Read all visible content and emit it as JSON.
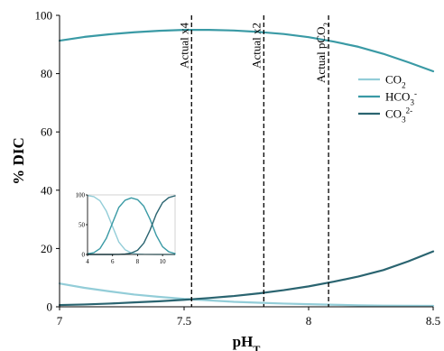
{
  "colors": {
    "co2": "#93CDD8",
    "hco3": "#3A9AA5",
    "co3": "#2A6470",
    "axis": "#000000"
  },
  "chart_data": [
    {
      "type": "line",
      "title": "",
      "xlabel": "pH",
      "xlabel_sub": "T",
      "ylabel": "% DIC",
      "xlim": [
        7,
        8.5
      ],
      "ylim": [
        0,
        100
      ],
      "xticks": [
        7,
        7.5,
        8,
        8.5
      ],
      "xtick_labels": [
        "7",
        "7.5",
        "8",
        "8.5"
      ],
      "yticks": [
        0,
        20,
        40,
        60,
        80,
        100
      ],
      "ytick_labels": [
        "0",
        "20",
        "40",
        "60",
        "80",
        "100"
      ],
      "legend": {
        "position": "right",
        "entries": [
          {
            "key": "co2",
            "base": "CO",
            "sub": "2",
            "sup": ""
          },
          {
            "key": "hco3",
            "base": "HCO",
            "sub": "3",
            "sup": "-"
          },
          {
            "key": "co3",
            "base": "CO",
            "sub": "3",
            "sup": "2-"
          }
        ]
      },
      "series": [
        {
          "key": "co2",
          "x": [
            7,
            7.1,
            7.2,
            7.3,
            7.4,
            7.5,
            7.6,
            7.7,
            7.8,
            7.9,
            8,
            8.1,
            8.2,
            8.3,
            8.4,
            8.5
          ],
          "values": [
            8.0,
            6.5,
            5.3,
            4.2,
            3.4,
            2.7,
            2.2,
            1.7,
            1.4,
            1.1,
            0.9,
            0.7,
            0.5,
            0.4,
            0.35,
            0.3
          ]
        },
        {
          "key": "hco3",
          "x": [
            7,
            7.1,
            7.2,
            7.3,
            7.4,
            7.5,
            7.6,
            7.7,
            7.8,
            7.9,
            8,
            8.1,
            8.2,
            8.3,
            8.4,
            8.5
          ],
          "values": [
            91.3,
            92.6,
            93.5,
            94.2,
            94.7,
            95.0,
            95.0,
            94.8,
            94.3,
            93.6,
            92.5,
            91.0,
            89.2,
            86.8,
            83.9,
            80.8
          ]
        },
        {
          "key": "co3",
          "x": [
            7,
            7.1,
            7.2,
            7.3,
            7.4,
            7.5,
            7.6,
            7.7,
            7.8,
            7.9,
            8,
            8.1,
            8.2,
            8.3,
            8.4,
            8.5
          ],
          "values": [
            0.6,
            0.8,
            1.1,
            1.5,
            1.9,
            2.4,
            3.0,
            3.7,
            4.6,
            5.7,
            7.0,
            8.6,
            10.4,
            12.6,
            15.6,
            19.0
          ]
        }
      ],
      "vlines": [
        {
          "x": 7.53,
          "label": "Actual x4",
          "sub": ""
        },
        {
          "x": 7.82,
          "label": "Actual x2",
          "sub": ""
        },
        {
          "x": 8.08,
          "label": "Actual pCO",
          "sub": "2"
        }
      ]
    },
    {
      "type": "line",
      "title": "",
      "inset": true,
      "xlim": [
        4,
        11
      ],
      "ylim": [
        0,
        100
      ],
      "xticks": [
        4,
        6,
        8,
        10
      ],
      "xtick_labels": [
        "4",
        "6",
        "8",
        "10"
      ],
      "yticks": [
        0,
        50,
        100
      ],
      "ytick_labels": [
        "0",
        "50",
        "100"
      ],
      "series": [
        {
          "key": "co2",
          "x": [
            4,
            4.5,
            5,
            5.5,
            6,
            6.5,
            7,
            7.5,
            8,
            8.5,
            9,
            9.5,
            10,
            10.5,
            11
          ],
          "values": [
            99,
            97,
            90,
            73,
            47,
            21,
            8,
            2.6,
            0.9,
            0.3,
            0.1,
            0,
            0,
            0,
            0
          ]
        },
        {
          "key": "hco3",
          "x": [
            4,
            4.5,
            5,
            5.5,
            6,
            6.5,
            7,
            7.5,
            8,
            8.5,
            9,
            9.5,
            10,
            10.5,
            11
          ],
          "values": [
            1,
            3,
            10,
            27,
            53,
            79,
            91,
            95,
            92,
            81,
            59,
            32,
            13,
            4.5,
            1.5
          ]
        },
        {
          "key": "co3",
          "x": [
            4,
            4.5,
            5,
            5.5,
            6,
            6.5,
            7,
            7.5,
            8,
            8.5,
            9,
            9.5,
            10,
            10.5,
            11
          ],
          "values": [
            0,
            0,
            0,
            0,
            0,
            0.1,
            0.6,
            2.4,
            7,
            19,
            41,
            68,
            87,
            95.5,
            98.5
          ]
        }
      ]
    }
  ]
}
